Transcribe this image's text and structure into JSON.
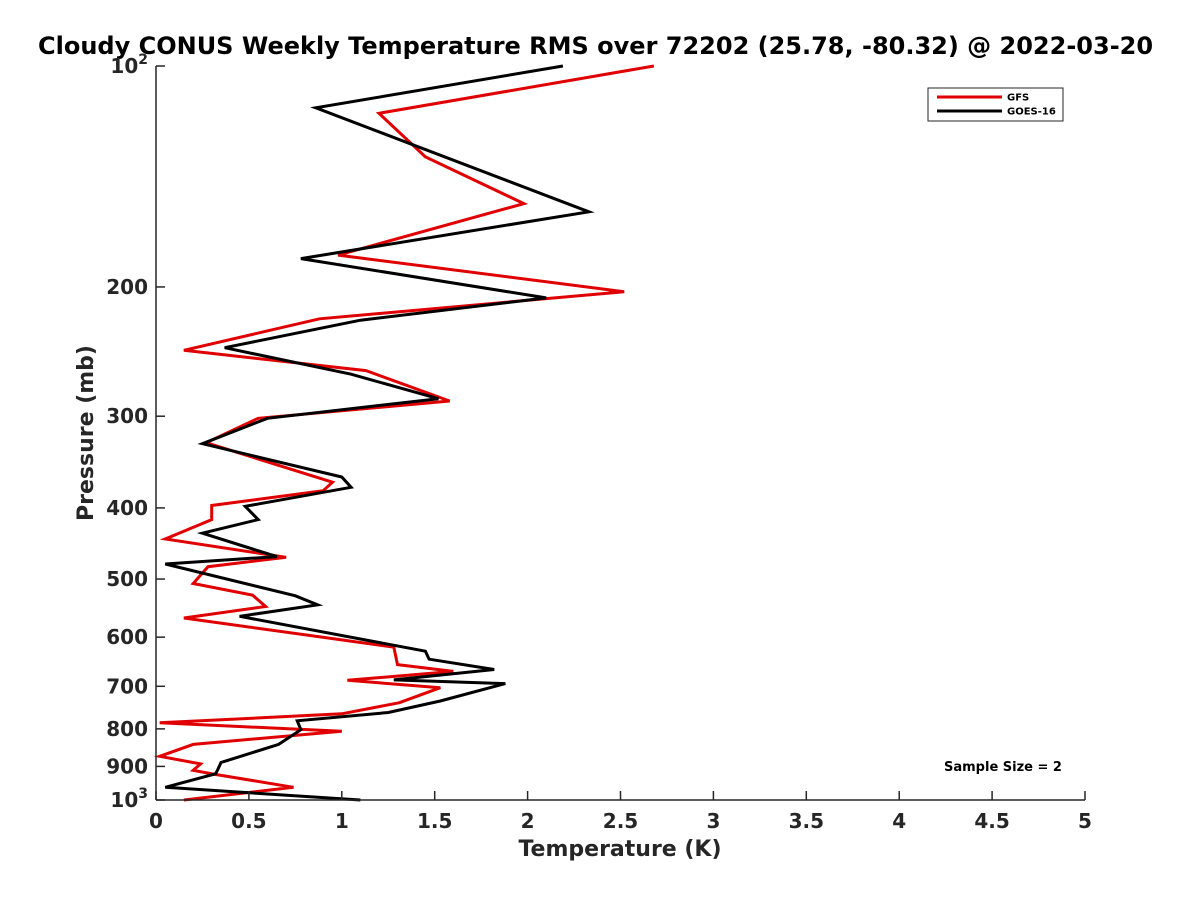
{
  "chart_data": {
    "type": "line",
    "title": "Cloudy CONUS Weekly Temperature RMS over 72202 (25.78, -80.32) @ 2022-03-20",
    "xlabel": "Temperature (K)",
    "ylabel": "Pressure (mb)",
    "xlim": [
      0,
      5
    ],
    "ylim": [
      100,
      1000
    ],
    "y_scale": "log",
    "y_reversed": true,
    "grid": false,
    "legend_position": "top-right",
    "x_ticks": [
      0,
      0.5,
      1,
      1.5,
      2,
      2.5,
      3,
      3.5,
      4,
      4.5,
      5
    ],
    "x_tick_labels": [
      "0",
      "0.5",
      "1",
      "1.5",
      "2",
      "2.5",
      "3",
      "3.5",
      "4",
      "4.5",
      "5"
    ],
    "y_ticks": [
      {
        "value": 100,
        "base": "10",
        "exp": "2"
      },
      {
        "value": 200,
        "label": "200"
      },
      {
        "value": 300,
        "label": "300"
      },
      {
        "value": 400,
        "label": "400"
      },
      {
        "value": 500,
        "label": "500"
      },
      {
        "value": 600,
        "label": "600"
      },
      {
        "value": 700,
        "label": "700"
      },
      {
        "value": 800,
        "label": "800"
      },
      {
        "value": 900,
        "label": "900"
      },
      {
        "value": 1000,
        "base": "10",
        "exp": "3"
      }
    ],
    "series": [
      {
        "name": "GFS",
        "color": "#e00000",
        "points": [
          [
            2.68,
            100
          ],
          [
            1.2,
            116
          ],
          [
            1.45,
            133
          ],
          [
            1.98,
            154
          ],
          [
            0.98,
            181
          ],
          [
            2.52,
            203
          ],
          [
            0.88,
            221
          ],
          [
            0.15,
            244
          ],
          [
            1.13,
            260
          ],
          [
            1.58,
            286
          ],
          [
            0.55,
            302
          ],
          [
            0.27,
            326
          ],
          [
            0.95,
            369
          ],
          [
            0.9,
            379
          ],
          [
            0.3,
            397
          ],
          [
            0.3,
            415
          ],
          [
            0.05,
            441
          ],
          [
            0.7,
            467
          ],
          [
            0.28,
            481
          ],
          [
            0.2,
            507
          ],
          [
            0.52,
            526
          ],
          [
            0.59,
            545
          ],
          [
            0.15,
            565
          ],
          [
            1.28,
            619
          ],
          [
            1.3,
            654
          ],
          [
            1.6,
            668
          ],
          [
            1.03,
            687
          ],
          [
            1.53,
            703
          ],
          [
            1.31,
            737
          ],
          [
            1.0,
            763
          ],
          [
            0.02,
            785
          ],
          [
            1.0,
            806
          ],
          [
            0.2,
            840
          ],
          [
            0.02,
            872
          ],
          [
            0.24,
            893
          ],
          [
            0.2,
            911
          ],
          [
            0.31,
            922
          ],
          [
            0.74,
            961
          ],
          [
            0.15,
            1000
          ]
        ]
      },
      {
        "name": "GOES-16",
        "color": "#000000",
        "points": [
          [
            2.19,
            100
          ],
          [
            0.86,
            114
          ],
          [
            2.33,
            158
          ],
          [
            0.78,
            183
          ],
          [
            2.1,
            207
          ],
          [
            1.1,
            222
          ],
          [
            0.37,
            242
          ],
          [
            1.05,
            263
          ],
          [
            1.52,
            284
          ],
          [
            0.6,
            302
          ],
          [
            0.25,
            327
          ],
          [
            1.0,
            363
          ],
          [
            1.05,
            375
          ],
          [
            0.48,
            398
          ],
          [
            0.55,
            415
          ],
          [
            0.25,
            433
          ],
          [
            0.65,
            466
          ],
          [
            0.05,
            477
          ],
          [
            0.75,
            527
          ],
          [
            0.87,
            542
          ],
          [
            0.45,
            562
          ],
          [
            1.45,
            627
          ],
          [
            1.47,
            643
          ],
          [
            1.82,
            664
          ],
          [
            1.28,
            686
          ],
          [
            1.88,
            694
          ],
          [
            1.53,
            733
          ],
          [
            1.25,
            760
          ],
          [
            0.76,
            780
          ],
          [
            0.78,
            802
          ],
          [
            0.66,
            840
          ],
          [
            0.35,
            889
          ],
          [
            0.33,
            912
          ],
          [
            0.32,
            921
          ],
          [
            0.05,
            961
          ],
          [
            1.1,
            1000
          ]
        ]
      }
    ],
    "annotations": [
      {
        "text": "Sample Size = 2",
        "x": 4.45,
        "y": 905
      }
    ]
  }
}
